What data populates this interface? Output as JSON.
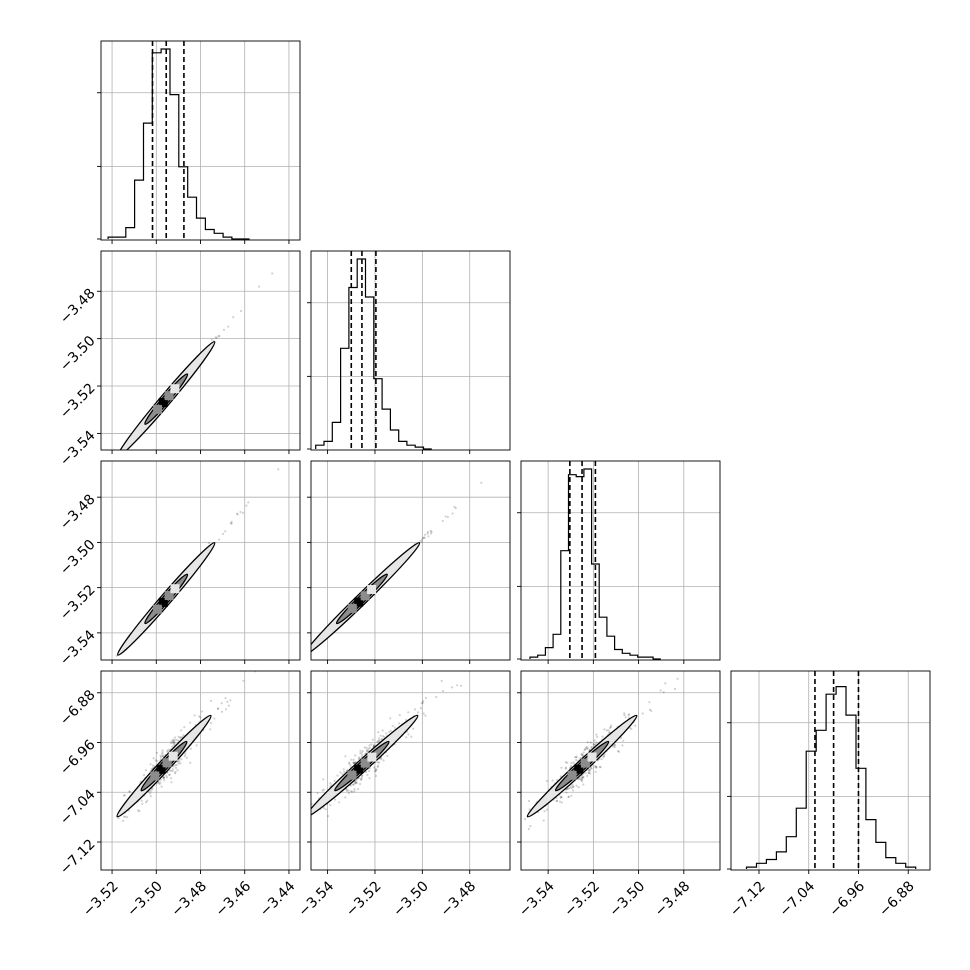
{
  "chart_data": {
    "type": "corner",
    "grid": true,
    "parameters": [
      {
        "range": [
          -3.525,
          -3.435
        ],
        "ticks": [
          -3.52,
          -3.5,
          -3.48,
          -3.46,
          -3.44
        ],
        "tick_labels": [
          "−3.52",
          "−3.50",
          "−3.48",
          "−3.46",
          "−3.44"
        ],
        "quantiles": [
          -3.5017,
          -3.4955,
          -3.4875
        ],
        "histogram": {
          "bin_edges": [
            -3.5218,
            -3.5178,
            -3.5138,
            -3.5098,
            -3.5058,
            -3.5018,
            -3.4978,
            -3.4938,
            -3.4898,
            -3.4858,
            -3.4818,
            -3.4778,
            -3.4738,
            -3.4698,
            -3.4658,
            -3.4618,
            -3.4578
          ],
          "counts": [
            0.01,
            0.01,
            0.06,
            0.31,
            0.61,
            0.98,
            1.0,
            0.76,
            0.38,
            0.22,
            0.11,
            0.05,
            0.03,
            0.01,
            0,
            0
          ]
        }
      },
      {
        "range": [
          -3.547,
          -3.463
        ],
        "ticks": [
          -3.54,
          -3.52,
          -3.5,
          -3.48
        ],
        "tick_labels": [
          "−3.54",
          "−3.52",
          "−3.50",
          "−3.48"
        ],
        "quantiles": [
          -3.53,
          -3.5255,
          -3.5196
        ],
        "histogram": {
          "bin_edges": [
            -3.545,
            -3.5415,
            -3.538,
            -3.5345,
            -3.531,
            -3.5275,
            -3.524,
            -3.5205,
            -3.517,
            -3.5135,
            -3.51,
            -3.5065,
            -3.503,
            -3.4995,
            -3.496
          ],
          "counts": [
            0.02,
            0.04,
            0.14,
            0.53,
            0.85,
            1.0,
            0.8,
            0.37,
            0.21,
            0.1,
            0.04,
            0.02,
            0.01,
            0
          ]
        }
      },
      {
        "range": [
          -3.552,
          -3.464
        ],
        "ticks": [
          -3.54,
          -3.52,
          -3.5,
          -3.48
        ],
        "tick_labels": [
          "−3.54",
          "−3.52",
          "−3.50",
          "−3.48"
        ],
        "quantiles": [
          -3.5304,
          -3.525,
          -3.5191
        ],
        "histogram": {
          "bin_edges": [
            -3.548,
            -3.5446,
            -3.5412,
            -3.5378,
            -3.5344,
            -3.531,
            -3.5276,
            -3.5242,
            -3.5208,
            -3.5174,
            -3.514,
            -3.5106,
            -3.5072,
            -3.5038,
            -3.5004,
            -3.497,
            -3.4936,
            -3.4902
          ],
          "counts": [
            0.01,
            0.02,
            0.06,
            0.13,
            0.57,
            0.97,
            0.96,
            1.0,
            0.5,
            0.22,
            0.12,
            0.05,
            0.03,
            0.02,
            0.01,
            0.01,
            0
          ]
        }
      },
      {
        "range": [
          -7.165,
          -6.845
        ],
        "ticks": [
          -7.12,
          -7.04,
          -6.96,
          -6.88
        ],
        "tick_labels": [
          "−7.12",
          "−7.04",
          "−6.96",
          "−6.88"
        ],
        "quantiles": [
          -7.03,
          -7.0,
          -6.96
        ],
        "histogram": {
          "bin_edges": [
            -7.14,
            -7.124,
            -7.108,
            -7.092,
            -7.076,
            -7.06,
            -7.044,
            -7.028,
            -7.012,
            -6.996,
            -6.98,
            -6.964,
            -6.948,
            -6.932,
            -6.916,
            -6.9,
            -6.884,
            -6.868
          ],
          "counts": [
            0.01,
            0.03,
            0.05,
            0.09,
            0.17,
            0.32,
            0.62,
            0.73,
            0.92,
            0.96,
            0.81,
            0.53,
            0.26,
            0.14,
            0.06,
            0.03,
            0.01
          ]
        }
      }
    ],
    "pairs": [
      {
        "row": 1,
        "col": 0,
        "center": [
          -3.4955,
          -3.5255
        ],
        "sigma": [
          0.0072,
          0.008
        ],
        "rho": 0.995,
        "contours": [
          [
            0.7,
            0.4
          ],
          [
            1.6,
            0.6
          ]
        ]
      },
      {
        "row": 2,
        "col": 0,
        "center": [
          -3.4955,
          -3.525
        ],
        "sigma": [
          0.0072,
          0.0082
        ],
        "rho": 0.995,
        "contours": [
          [
            0.7,
            0.4
          ],
          [
            1.6,
            0.6
          ]
        ]
      },
      {
        "row": 2,
        "col": 1,
        "center": [
          -3.5255,
          -3.525
        ],
        "sigma": [
          0.008,
          0.0082
        ],
        "rho": 0.995,
        "contours": [
          [
            0.7,
            0.4
          ],
          [
            1.6,
            0.6
          ]
        ]
      },
      {
        "row": 3,
        "col": 0,
        "center": [
          -3.4965,
          -6.998
        ],
        "sigma": [
          0.0072,
          0.03
        ],
        "rho": 0.92,
        "contours": [
          [
            0.75,
            0.42
          ],
          [
            1.55,
            0.62
          ]
        ]
      },
      {
        "row": 3,
        "col": 1,
        "center": [
          -3.5255,
          -6.998
        ],
        "sigma": [
          0.008,
          0.03
        ],
        "rho": 0.92,
        "contours": [
          [
            0.75,
            0.42
          ],
          [
            1.55,
            0.62
          ]
        ]
      },
      {
        "row": 3,
        "col": 2,
        "center": [
          -3.525,
          -6.998
        ],
        "sigma": [
          0.0082,
          0.03
        ],
        "rho": 0.92,
        "contours": [
          [
            0.75,
            0.42
          ],
          [
            1.55,
            0.62
          ]
        ]
      }
    ],
    "colors": {
      "line": "#000000",
      "points": "#000000",
      "grid": "#b0b0b0",
      "density_light": "#e6e6e6",
      "density_mid": "#8c8c8c",
      "density_dark": "#000000"
    }
  }
}
